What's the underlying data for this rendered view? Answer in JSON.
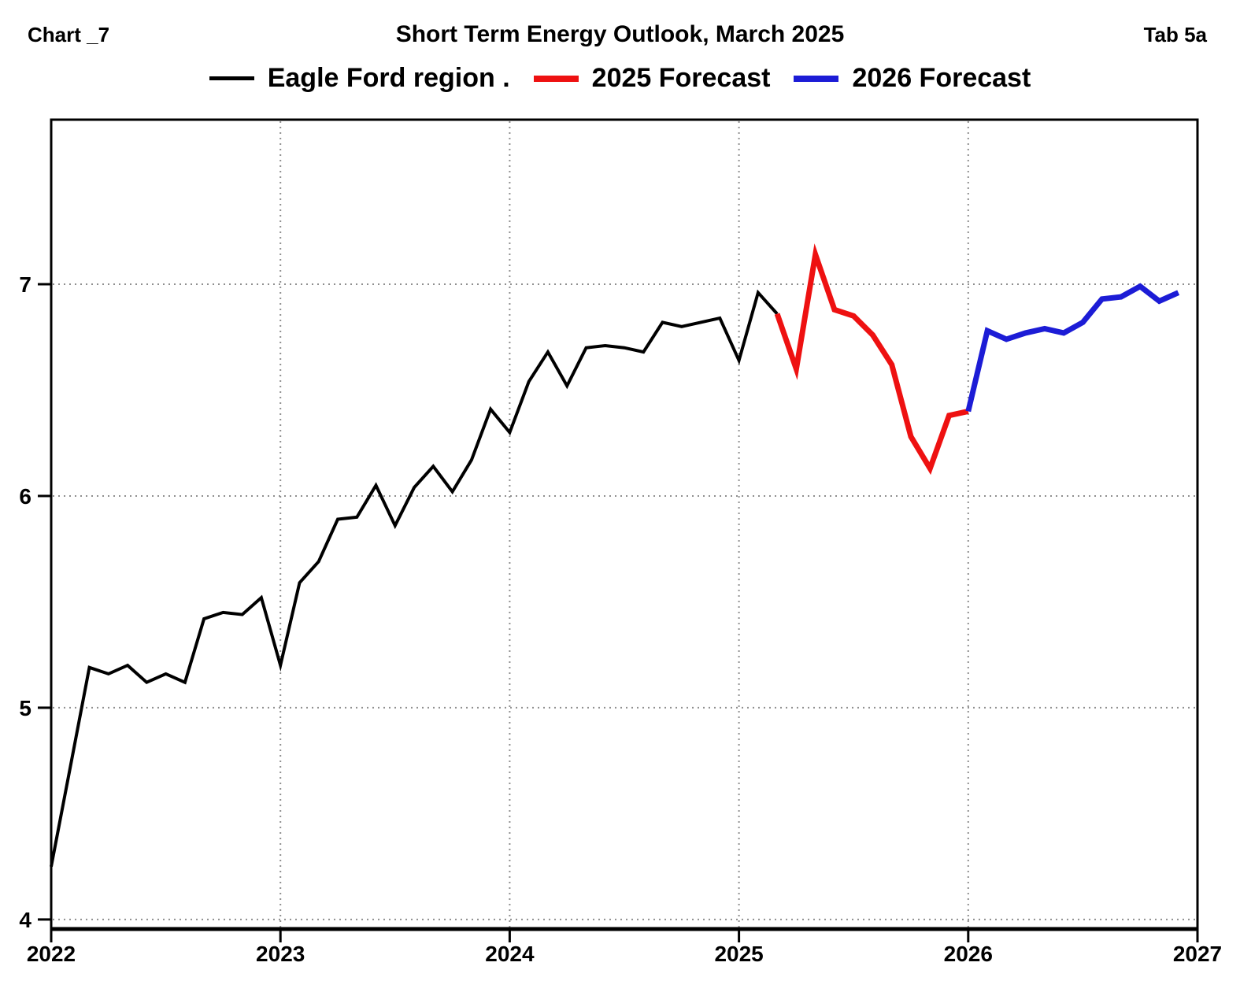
{
  "header": {
    "left": "Chart _7",
    "title": "Short Term Energy Outlook, March 2025",
    "right": "Tab 5a"
  },
  "chart_data": {
    "type": "line",
    "title": "Short Term Energy Outlook, March 2025",
    "legend_position": "top center",
    "grid": "dotted",
    "grid_color": "#8f8f8f",
    "x_axis": {
      "ticks": [
        "2022",
        "2023",
        "2024",
        "2025",
        "2026",
        "2027"
      ],
      "range": [
        2022,
        2027
      ]
    },
    "y_axis": {
      "ticks": [
        "4",
        "5",
        "6",
        "7"
      ],
      "range": [
        3.955,
        7.777
      ]
    },
    "series": [
      {
        "name": "Eagle Ford region .",
        "color": "#000000",
        "line_width": 4,
        "months": [
          "2022-01",
          "2022-02",
          "2022-03",
          "2022-04",
          "2022-05",
          "2022-06",
          "2022-07",
          "2022-08",
          "2022-09",
          "2022-10",
          "2022-11",
          "2022-12",
          "2023-01",
          "2023-02",
          "2023-03",
          "2023-04",
          "2023-05",
          "2023-06",
          "2023-07",
          "2023-08",
          "2023-09",
          "2023-10",
          "2023-11",
          "2023-12",
          "2024-01",
          "2024-02",
          "2024-03",
          "2024-04",
          "2024-05",
          "2024-06",
          "2024-07",
          "2024-08",
          "2024-09",
          "2024-10",
          "2024-11",
          "2024-12",
          "2025-01",
          "2025-02",
          "2025-03"
        ],
        "values": [
          4.25,
          4.72,
          5.19,
          5.16,
          5.2,
          5.12,
          5.16,
          5.12,
          5.42,
          5.45,
          5.44,
          5.52,
          5.2,
          5.59,
          5.69,
          5.89,
          5.9,
          6.05,
          5.86,
          6.04,
          6.14,
          6.02,
          6.17,
          6.41,
          6.3,
          6.54,
          6.68,
          6.52,
          6.7,
          6.71,
          6.7,
          6.68,
          6.82,
          6.8,
          6.82,
          6.84,
          6.64,
          6.96,
          6.86
        ]
      },
      {
        "name": "2025 Forecast",
        "color": "#ee1111",
        "line_width": 7,
        "months": [
          "2025-03",
          "2025-04",
          "2025-05",
          "2025-06",
          "2025-07",
          "2025-08",
          "2025-09",
          "2025-10",
          "2025-11",
          "2025-12",
          "2026-01"
        ],
        "values": [
          6.86,
          6.6,
          7.14,
          6.88,
          6.85,
          6.76,
          6.62,
          6.28,
          6.13,
          6.38,
          6.4
        ]
      },
      {
        "name": "2026 Forecast",
        "color": "#1c1cd6",
        "line_width": 7,
        "months": [
          "2026-01",
          "2026-02",
          "2026-03",
          "2026-04",
          "2026-05",
          "2026-06",
          "2026-07",
          "2026-08",
          "2026-09",
          "2026-10",
          "2026-11",
          "2026-12"
        ],
        "values": [
          6.4,
          6.78,
          6.74,
          6.77,
          6.79,
          6.77,
          6.82,
          6.93,
          6.94,
          6.99,
          6.92,
          6.96
        ]
      }
    ]
  }
}
